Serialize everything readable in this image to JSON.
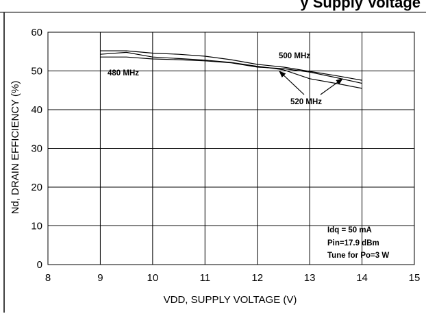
{
  "page": {
    "title_fragment": "y Supply Voltage"
  },
  "chart_data": {
    "type": "line",
    "title": "",
    "xlabel": "VDD, SUPPLY VOLTAGE (V)",
    "ylabel": "Nd, DRAIN EFFICIENCY (%)",
    "xlim": [
      8,
      15
    ],
    "ylim": [
      0,
      60
    ],
    "xticks": [
      "8",
      "9",
      "10",
      "11",
      "12",
      "13",
      "14",
      "15"
    ],
    "yticks": [
      "0",
      "10",
      "20",
      "30",
      "40",
      "50",
      "60"
    ],
    "grid": true,
    "series": [
      {
        "name": "480 MHz",
        "x": [
          9,
          9.5,
          10,
          10.5,
          11,
          11.5,
          12,
          12.5,
          13,
          13.5,
          14
        ],
        "y": [
          53.6,
          53.6,
          53.1,
          52.9,
          52.6,
          52.1,
          51.0,
          50.6,
          49.7,
          48.3,
          46.8
        ]
      },
      {
        "name": "500 MHz",
        "x": [
          9,
          9.5,
          10,
          10.5,
          11,
          11.5,
          12,
          12.5,
          13,
          13.5,
          14
        ],
        "y": [
          55.2,
          55.2,
          54.6,
          54.3,
          53.8,
          52.9,
          51.7,
          51.0,
          49.9,
          48.8,
          47.6
        ]
      },
      {
        "name": "520 MHz",
        "x": [
          9,
          9.5,
          10,
          10.5,
          11,
          11.5,
          12,
          12.5,
          13,
          13.5,
          14
        ],
        "y": [
          54.3,
          54.8,
          53.6,
          53.2,
          52.8,
          52.2,
          51.2,
          50.3,
          48.0,
          46.8,
          45.5
        ]
      }
    ],
    "annotations": {
      "label_480": "480 MHz",
      "label_500": "500 MHz",
      "label_520": "520 MHz",
      "cond_idq": "Idq = 50 mA",
      "cond_pin": "Pin=17.9 dBm",
      "cond_tune": "Tune for Po=3 W"
    }
  }
}
